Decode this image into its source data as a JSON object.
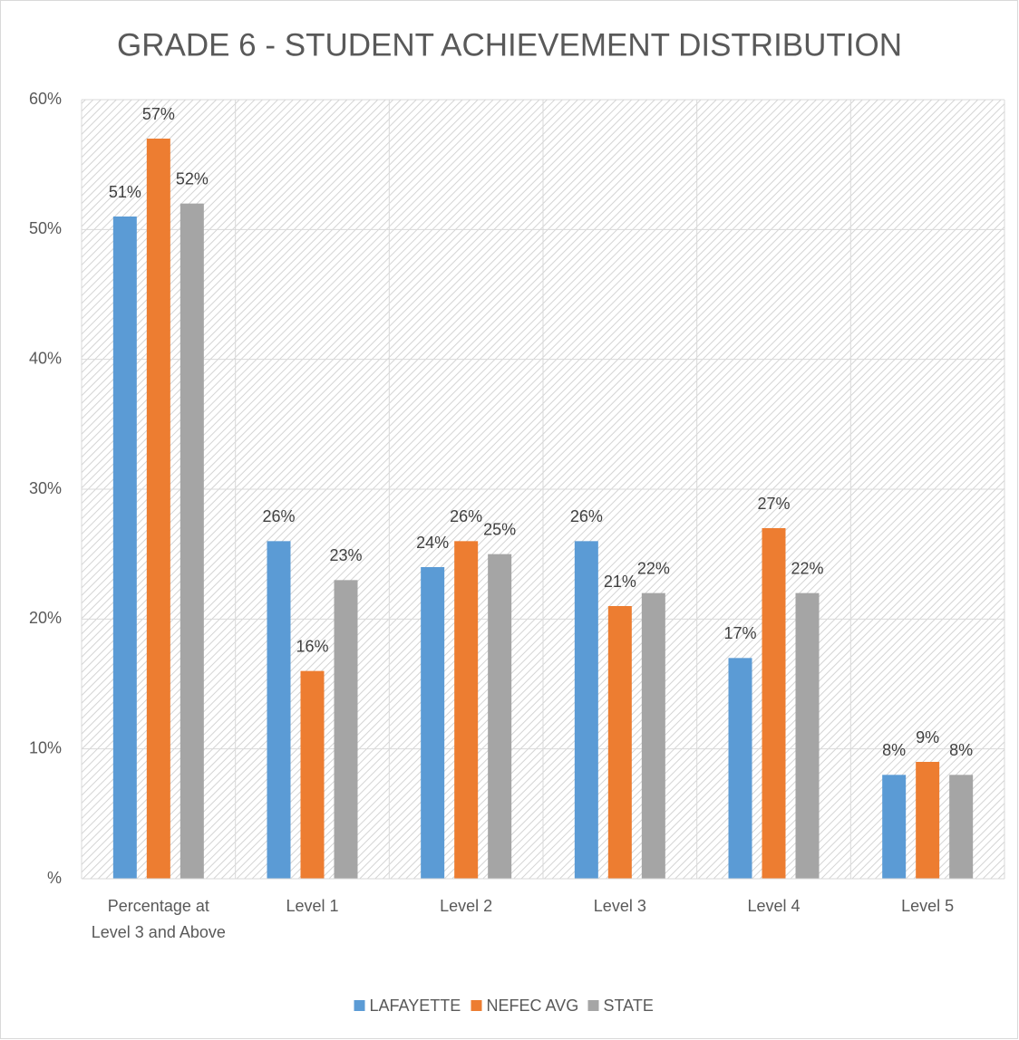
{
  "chart_data": {
    "type": "bar",
    "title": "GRADE 6 - STUDENT ACHIEVEMENT DISTRIBUTION",
    "categories": [
      "Percentage at Level 3 and Above",
      "Level 1",
      "Level 2",
      "Level 3",
      "Level 4",
      "Level 5"
    ],
    "series": [
      {
        "name": "LAFAYETTE",
        "color": "#5b9bd5",
        "values": [
          51,
          26,
          24,
          26,
          17,
          8
        ],
        "value_labels": [
          "51%",
          "26%",
          "24%",
          "26%",
          "17%",
          "8%"
        ]
      },
      {
        "name": "NEFEC AVG",
        "color": "#ed7d31",
        "values": [
          57,
          16,
          26,
          21,
          27,
          9
        ],
        "value_labels": [
          "57%",
          "16%",
          "26%",
          "21%",
          "27%",
          "9%"
        ]
      },
      {
        "name": "STATE",
        "color": "#a5a5a5",
        "values": [
          52,
          23,
          25,
          22,
          22,
          8
        ],
        "value_labels": [
          "52%",
          "23%",
          "25%",
          "22%",
          "22%",
          "8%"
        ]
      }
    ],
    "ylim": [
      0,
      60
    ],
    "yticks": [
      {
        "value": 0,
        "label": "%"
      },
      {
        "value": 10,
        "label": "10%"
      },
      {
        "value": 20,
        "label": "20%"
      },
      {
        "value": 30,
        "label": "30%"
      },
      {
        "value": 40,
        "label": "40%"
      },
      {
        "value": 50,
        "label": "50%"
      },
      {
        "value": 60,
        "label": "60%"
      }
    ],
    "grid": true,
    "legend": "bottom"
  }
}
